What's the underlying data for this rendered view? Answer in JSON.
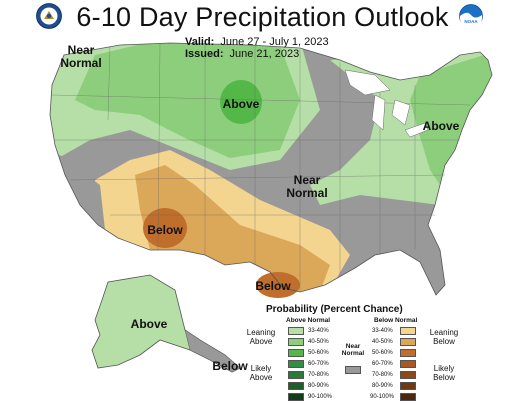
{
  "title": "6-10 Day Precipitation Outlook",
  "valid_label": "Valid:",
  "valid_value": "June 27 - July 1, 2023",
  "issued_label": "Issued:",
  "issued_value": "June 21, 2023",
  "logos": {
    "left": "noaa-department-of-commerce-seal",
    "right": "noaa-logo",
    "right_text": "NOAA"
  },
  "region_labels": {
    "near_normal_nw": "Near Normal",
    "above_north_central": "Above",
    "above_northeast": "Above",
    "near_normal_central": "Near Normal",
    "below_southwest": "Below",
    "below_texas": "Below",
    "above_alaska": "Above",
    "below_alaska_se": "Below"
  },
  "colors": {
    "above_33_40": "#b5dfa6",
    "above_40_50": "#8dce7c",
    "above_50_60": "#54b848",
    "above_60_70": "#318f43",
    "above_70_80": "#2a7a3a",
    "above_80_90": "#1f5e2c",
    "above_90_100": "#123d1b",
    "near_normal": "#999999",
    "below_33_40": "#f3d590",
    "below_40_50": "#dba85a",
    "below_50_60": "#bf6e2c",
    "below_60_70": "#a95824",
    "below_70_80": "#8c4a1c",
    "below_80_90": "#6e3a16",
    "below_90_100": "#4d2810"
  },
  "legend": {
    "title": "Probability (Percent Chance)",
    "above_header": "Above Normal",
    "below_header": "Below Normal",
    "near_normal": "Near Normal",
    "leaning_above": "Leaning Above",
    "likely_above": "Likely Above",
    "leaning_below": "Leaning Below",
    "likely_below": "Likely Below",
    "ranges": [
      "33-40%",
      "40-50%",
      "50-60%",
      "60-70%",
      "70-80%",
      "80-90%",
      "90-100%"
    ]
  }
}
